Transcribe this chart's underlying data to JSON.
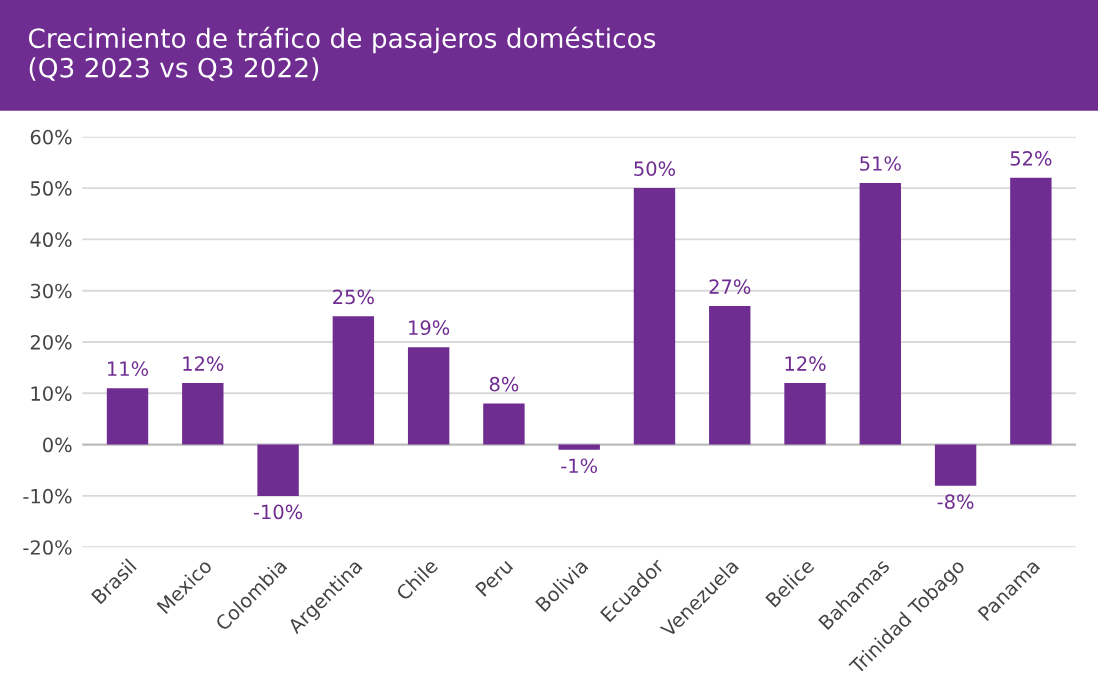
{
  "chart_data": {
    "type": "bar",
    "title": "Crecimiento de tráfico de pasajeros domésticos\n(Q3 2023 vs Q3 2022)",
    "categories": [
      "Brasil",
      "Mexico",
      "Colombia",
      "Argentina",
      "Chile",
      "Peru",
      "Bolivia",
      "Ecuador",
      "Venezuela",
      "Belice",
      "Bahamas",
      "Trinidad Tobago",
      "Panama"
    ],
    "values": [
      11,
      12,
      -10,
      25,
      19,
      8,
      -1,
      50,
      27,
      12,
      51,
      -8,
      52
    ],
    "value_labels": [
      "11%",
      "12%",
      "-10%",
      "25%",
      "19%",
      "8%",
      "-1%",
      "50%",
      "27%",
      "12%",
      "51%",
      "-8%",
      "52%"
    ],
    "color": "#6f2c91",
    "ylim": [
      -20,
      60
    ],
    "yticks": [
      {
        "value": -20,
        "label": "-20%"
      },
      {
        "value": -10,
        "label": "-10%"
      },
      {
        "value": 0,
        "label": "0%"
      },
      {
        "value": 10,
        "label": "10%"
      },
      {
        "value": 20,
        "label": "20%"
      },
      {
        "value": 30,
        "label": "30%"
      },
      {
        "value": 40,
        "label": "40%"
      },
      {
        "value": 50,
        "label": "50%"
      },
      {
        "value": 60,
        "label": "60%"
      }
    ],
    "grid": "y",
    "legend": false
  }
}
